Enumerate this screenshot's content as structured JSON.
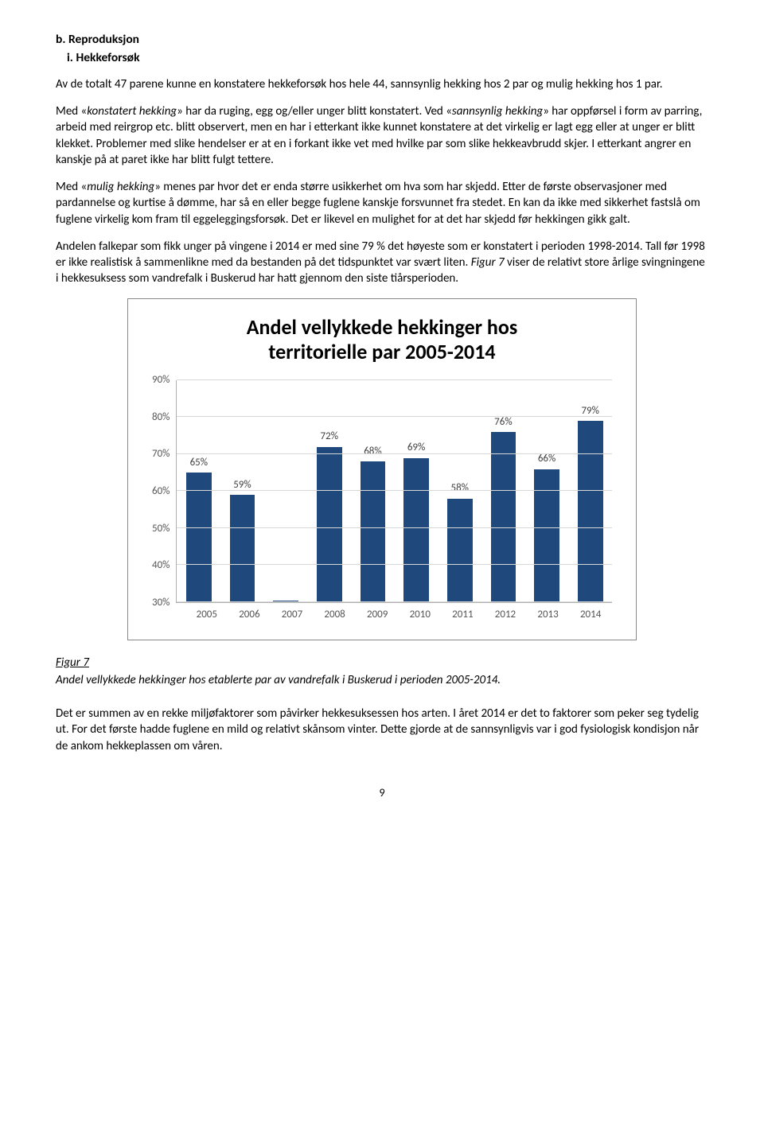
{
  "headings": {
    "section_b": "b. Reproduksjon",
    "section_i": "i. Hekkeforsøk"
  },
  "paragraphs": {
    "p1": "Av de totalt 47 parene kunne en konstatere hekkeforsøk hos hele 44, sannsynlig hekking hos 2 par og mulig hekking hos 1 par.",
    "p2a": "Med «",
    "p2a_i": "konstatert hekking",
    "p2b": "» har da ruging, egg og/eller unger blitt konstatert. Ved «",
    "p2b_i": "sannsynlig hekking",
    "p2c": "» har oppførsel i form av parring, arbeid med reirgrop etc. blitt observert, men en har i etterkant ikke kunnet konstatere at det virkelig er lagt egg eller at unger er blitt klekket. Problemer med slike hendelser er at en i forkant ikke vet med hvilke par som slike hekkeavbrudd skjer. I etterkant angrer en kanskje på at paret ikke har blitt fulgt tettere.",
    "p3a": "Med «",
    "p3a_i": "mulig hekking",
    "p3b": "» menes par hvor det er enda større usikkerhet om hva som har skjedd. Etter de første observasjoner med pardannelse og kurtise å dømme, har så en eller begge fuglene kanskje forsvunnet fra stedet. En kan da ikke med sikkerhet fastslå om fuglene virkelig kom fram til eggeleggingsforsøk. Det er likevel en mulighet for at det har skjedd før hekkingen gikk galt.",
    "p4a": "Andelen falkepar som fikk unger på vingene i 2014 er med sine 79 % det høyeste som er konstatert i perioden 1998-2014. Tall før 1998 er ikke realistisk å sammenlikne med da bestanden på det tidspunktet var svært liten. ",
    "p4a_i": "Figur 7",
    "p4b": " viser de relativt store årlige svingningene i hekkesuksess som vandrefalk i Buskerud har hatt gjennom den siste tiårsperioden.",
    "p5": "Det er summen av en rekke miljøfaktorer som påvirker hekkesuksessen hos arten. I året 2014 er det to faktorer som peker seg tydelig ut. For det første hadde fuglene en mild og relativt skånsom vinter. Dette gjorde at de sannsynligvis var i god fysiologisk kondisjon når de ankom hekkeplassen om våren."
  },
  "chart": {
    "title_line1": "Andel vellykkede hekkinger hos",
    "title_line2": "territorielle par 2005-2014",
    "categories": [
      "2005",
      "2006",
      "2007",
      "2008",
      "2009",
      "2010",
      "2011",
      "2012",
      "2013",
      "2014"
    ],
    "values": [
      65,
      59,
      30.5,
      72,
      68,
      69,
      58,
      76,
      66,
      79
    ],
    "value_labels": [
      "65%",
      "59%",
      "",
      "72%",
      "68%",
      "69%",
      "58%",
      "76%",
      "66%",
      "79%"
    ],
    "bar_color": "#1f497d",
    "ymin": 30,
    "ymax": 90,
    "ystep": 10,
    "grid_color": "#d8d8d8",
    "axis_color": "#b0b0b0",
    "label_fontsize": 13,
    "yticks": [
      "90%",
      "80%",
      "70%",
      "60%",
      "50%",
      "40%",
      "30%"
    ]
  },
  "figure": {
    "label": "Figur 7",
    "caption": "Andel vellykkede hekkinger hos etablerte par av vandrefalk i Buskerud i perioden 2005-2014."
  },
  "page_number": "9"
}
